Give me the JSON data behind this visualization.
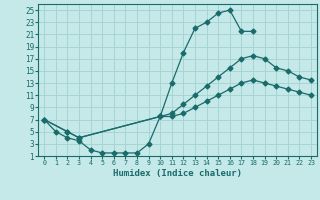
{
  "xlabel": "Humidex (Indice chaleur)",
  "bg_color": "#c5e8e8",
  "grid_color": "#a8d4d4",
  "line_color": "#1a6b6b",
  "xlim": [
    -0.5,
    23.5
  ],
  "ylim": [
    1,
    26
  ],
  "xticks": [
    0,
    1,
    2,
    3,
    4,
    5,
    6,
    7,
    8,
    9,
    10,
    11,
    12,
    13,
    14,
    15,
    16,
    17,
    18,
    19,
    20,
    21,
    22,
    23
  ],
  "yticks": [
    1,
    3,
    5,
    7,
    9,
    11,
    13,
    15,
    17,
    19,
    21,
    23,
    25
  ],
  "curve1_x": [
    0,
    1,
    2,
    3,
    4,
    5,
    6,
    7,
    8,
    9,
    10,
    11,
    12,
    13,
    14,
    15,
    16,
    17,
    18
  ],
  "curve1_y": [
    7,
    5,
    4,
    3.5,
    2,
    1.5,
    1.5,
    1.5,
    1.5,
    3,
    7.5,
    13,
    18,
    22,
    23,
    24.5,
    25,
    21.5,
    21.5
  ],
  "curve2_x": [
    0,
    2,
    3,
    10,
    11,
    12,
    13,
    14,
    15,
    16,
    17,
    18,
    19,
    20,
    21,
    22,
    23
  ],
  "curve2_y": [
    7,
    5,
    4,
    7.5,
    8,
    9.5,
    11,
    12.5,
    14,
    15.5,
    17,
    17.5,
    17,
    15.5,
    15,
    14,
    13.5
  ],
  "curve3_x": [
    0,
    2,
    3,
    10,
    11,
    12,
    13,
    14,
    15,
    16,
    17,
    18,
    19,
    20,
    21,
    22,
    23
  ],
  "curve3_y": [
    7,
    5,
    4,
    7.5,
    7.5,
    8,
    9,
    10,
    11,
    12,
    13,
    13.5,
    13,
    12.5,
    12,
    11.5,
    11
  ]
}
